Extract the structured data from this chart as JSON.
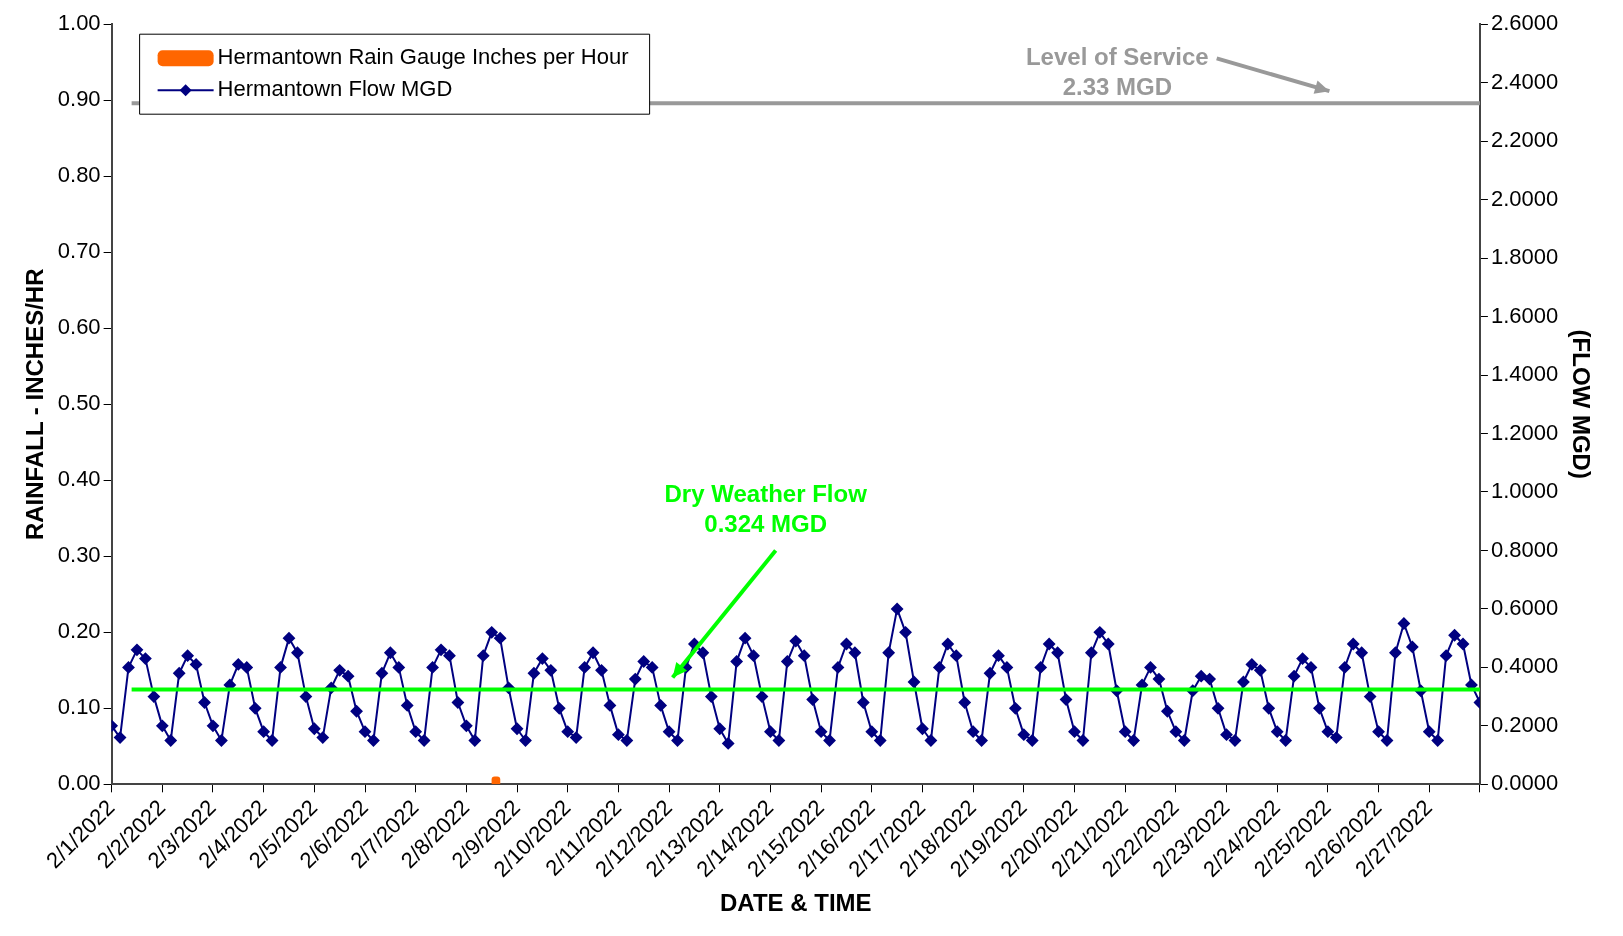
{
  "chart_data": {
    "type": "line",
    "xlabel": "DATE & TIME",
    "ylabel": "RAINFALL - INCHES/HR",
    "y2label": "(FLOW MGD)",
    "xlim": [
      "2022-02-01",
      "2022-02-28"
    ],
    "xticks": [
      {
        "value": "2022-02-01",
        "label": "2/1/2022"
      },
      {
        "value": "2022-02-02",
        "label": "2/2/2022"
      },
      {
        "value": "2022-02-03",
        "label": "2/3/2022"
      },
      {
        "value": "2022-02-04",
        "label": "2/4/2022"
      },
      {
        "value": "2022-02-05",
        "label": "2/5/2022"
      },
      {
        "value": "2022-02-06",
        "label": "2/6/2022"
      },
      {
        "value": "2022-02-07",
        "label": "2/7/2022"
      },
      {
        "value": "2022-02-08",
        "label": "2/8/2022"
      },
      {
        "value": "2022-02-09",
        "label": "2/9/2022"
      },
      {
        "value": "2022-02-10",
        "label": "2/10/2022"
      },
      {
        "value": "2022-02-11",
        "label": "2/11/2022"
      },
      {
        "value": "2022-02-12",
        "label": "2/12/2022"
      },
      {
        "value": "2022-02-13",
        "label": "2/13/2022"
      },
      {
        "value": "2022-02-14",
        "label": "2/14/2022"
      },
      {
        "value": "2022-02-15",
        "label": "2/15/2022"
      },
      {
        "value": "2022-02-16",
        "label": "2/16/2022"
      },
      {
        "value": "2022-02-17",
        "label": "2/17/2022"
      },
      {
        "value": "2022-02-18",
        "label": "2/18/2022"
      },
      {
        "value": "2022-02-19",
        "label": "2/19/2022"
      },
      {
        "value": "2022-02-20",
        "label": "2/20/2022"
      },
      {
        "value": "2022-02-21",
        "label": "2/21/2022"
      },
      {
        "value": "2022-02-22",
        "label": "2/22/2022"
      },
      {
        "value": "2022-02-23",
        "label": "2/23/2022"
      },
      {
        "value": "2022-02-24",
        "label": "2/24/2022"
      },
      {
        "value": "2022-02-25",
        "label": "2/25/2022"
      },
      {
        "value": "2022-02-26",
        "label": "2/26/2022"
      },
      {
        "value": "2022-02-27",
        "label": "2/27/2022"
      },
      {
        "value": "2022-02-28",
        "label": null
      }
    ],
    "ylim": [
      0,
      1
    ],
    "yticks": [
      {
        "value": 0,
        "label": "0.00"
      },
      {
        "value": 0.1,
        "label": "0.10"
      },
      {
        "value": 0.2,
        "label": "0.20"
      },
      {
        "value": 0.3,
        "label": "0.30"
      },
      {
        "value": 0.4,
        "label": "0.40"
      },
      {
        "value": 0.5,
        "label": "0.50"
      },
      {
        "value": 0.6,
        "label": "0.60"
      },
      {
        "value": 0.7,
        "label": "0.70"
      },
      {
        "value": 0.8,
        "label": "0.80"
      },
      {
        "value": 0.9,
        "label": "0.90"
      },
      {
        "value": 1,
        "label": "1.00"
      }
    ],
    "y2lim": [
      0,
      2.6
    ],
    "y2ticks": [
      {
        "value": 0,
        "label": "0.0000"
      },
      {
        "value": 0.2,
        "label": "0.2000"
      },
      {
        "value": 0.4,
        "label": "0.4000"
      },
      {
        "value": 0.6,
        "label": "0.6000"
      },
      {
        "value": 0.8,
        "label": "0.8000"
      },
      {
        "value": 1,
        "label": "1.0000"
      },
      {
        "value": 1.2,
        "label": "1.2000"
      },
      {
        "value": 1.4,
        "label": "1.4000"
      },
      {
        "value": 1.6,
        "label": "1.6000"
      },
      {
        "value": 1.8,
        "label": "1.8000"
      },
      {
        "value": 2,
        "label": "2.0000"
      },
      {
        "value": 2.2,
        "label": "2.2000"
      },
      {
        "value": 2.4,
        "label": "2.4000"
      },
      {
        "value": 2.6,
        "label": "2.6000"
      }
    ],
    "legend": "top left",
    "marker": "diamond",
    "line_style": "solid",
    "ref_lines": [
      {
        "axis": "y2",
        "value": 2.33,
        "label": "Level of Service\n2.33 MGD",
        "color": "#999999"
      },
      {
        "axis": "y2",
        "value": 0.324,
        "label": "Dry Weather Flow\n0.324 MGD",
        "color": "#00ff00"
      }
    ],
    "series": [
      {
        "name": "Hermantown Rain Gauge Inches per Hour",
        "type": "bar",
        "color": "#ff6600",
        "x": [
          "2022-02-08T14:00"
        ],
        "values": [
          0.01
        ]
      },
      {
        "name": "Hermantown Flow MGD",
        "axis": "y2",
        "color": "#000080",
        "x": [
          "2022-02-01T00:00",
          "2022-02-01T04:00",
          "2022-02-01T08:00",
          "2022-02-01T12:00",
          "2022-02-01T16:00",
          "2022-02-01T20:00",
          "2022-02-02T00:00",
          "2022-02-02T04:00",
          "2022-02-02T08:00",
          "2022-02-02T12:00",
          "2022-02-02T16:00",
          "2022-02-02T20:00",
          "2022-02-03T00:00",
          "2022-02-03T04:00",
          "2022-02-03T08:00",
          "2022-02-03T12:00",
          "2022-02-03T16:00",
          "2022-02-03T20:00",
          "2022-02-04T00:00",
          "2022-02-04T04:00",
          "2022-02-04T08:00",
          "2022-02-04T12:00",
          "2022-02-04T16:00",
          "2022-02-04T20:00",
          "2022-02-05T00:00",
          "2022-02-05T04:00",
          "2022-02-05T08:00",
          "2022-02-05T12:00",
          "2022-02-05T16:00",
          "2022-02-05T20:00",
          "2022-02-06T00:00",
          "2022-02-06T04:00",
          "2022-02-06T08:00",
          "2022-02-06T12:00",
          "2022-02-06T16:00",
          "2022-02-06T20:00",
          "2022-02-07T00:00",
          "2022-02-07T04:00",
          "2022-02-07T08:00",
          "2022-02-07T12:00",
          "2022-02-07T16:00",
          "2022-02-07T20:00",
          "2022-02-08T00:00",
          "2022-02-08T04:00",
          "2022-02-08T08:00",
          "2022-02-08T12:00",
          "2022-02-08T16:00",
          "2022-02-08T20:00",
          "2022-02-09T00:00",
          "2022-02-09T04:00",
          "2022-02-09T08:00",
          "2022-02-09T12:00",
          "2022-02-09T16:00",
          "2022-02-09T20:00",
          "2022-02-10T00:00",
          "2022-02-10T04:00",
          "2022-02-10T08:00",
          "2022-02-10T12:00",
          "2022-02-10T16:00",
          "2022-02-10T20:00",
          "2022-02-11T00:00",
          "2022-02-11T04:00",
          "2022-02-11T08:00",
          "2022-02-11T12:00",
          "2022-02-11T16:00",
          "2022-02-11T20:00",
          "2022-02-12T00:00",
          "2022-02-12T04:00",
          "2022-02-12T08:00",
          "2022-02-12T12:00",
          "2022-02-12T16:00",
          "2022-02-12T20:00",
          "2022-02-13T00:00",
          "2022-02-13T04:00",
          "2022-02-13T08:00",
          "2022-02-13T12:00",
          "2022-02-13T16:00",
          "2022-02-13T20:00",
          "2022-02-14T00:00",
          "2022-02-14T04:00",
          "2022-02-14T08:00",
          "2022-02-14T12:00",
          "2022-02-14T16:00",
          "2022-02-14T20:00",
          "2022-02-15T00:00",
          "2022-02-15T04:00",
          "2022-02-15T08:00",
          "2022-02-15T12:00",
          "2022-02-15T16:00",
          "2022-02-15T20:00",
          "2022-02-16T00:00",
          "2022-02-16T04:00",
          "2022-02-16T08:00",
          "2022-02-16T12:00",
          "2022-02-16T16:00",
          "2022-02-16T20:00",
          "2022-02-17T00:00",
          "2022-02-17T04:00",
          "2022-02-17T08:00",
          "2022-02-17T12:00",
          "2022-02-17T16:00",
          "2022-02-17T20:00",
          "2022-02-18T00:00",
          "2022-02-18T04:00",
          "2022-02-18T08:00",
          "2022-02-18T12:00",
          "2022-02-18T16:00",
          "2022-02-18T20:00",
          "2022-02-19T00:00",
          "2022-02-19T04:00",
          "2022-02-19T08:00",
          "2022-02-19T12:00",
          "2022-02-19T16:00",
          "2022-02-19T20:00",
          "2022-02-20T00:00",
          "2022-02-20T04:00",
          "2022-02-20T08:00",
          "2022-02-20T12:00",
          "2022-02-20T16:00",
          "2022-02-20T20:00",
          "2022-02-21T00:00",
          "2022-02-21T04:00",
          "2022-02-21T08:00",
          "2022-02-21T12:00",
          "2022-02-21T16:00",
          "2022-02-21T20:00",
          "2022-02-22T00:00",
          "2022-02-22T04:00",
          "2022-02-22T08:00",
          "2022-02-22T12:00",
          "2022-02-22T16:00",
          "2022-02-22T20:00",
          "2022-02-23T00:00",
          "2022-02-23T04:00",
          "2022-02-23T08:00",
          "2022-02-23T12:00",
          "2022-02-23T16:00",
          "2022-02-23T20:00",
          "2022-02-24T00:00",
          "2022-02-24T04:00",
          "2022-02-24T08:00",
          "2022-02-24T12:00",
          "2022-02-24T16:00",
          "2022-02-24T20:00",
          "2022-02-25T00:00",
          "2022-02-25T04:00",
          "2022-02-25T08:00",
          "2022-02-25T12:00",
          "2022-02-25T16:00",
          "2022-02-25T20:00",
          "2022-02-26T00:00",
          "2022-02-26T04:00",
          "2022-02-26T08:00",
          "2022-02-26T12:00",
          "2022-02-26T16:00",
          "2022-02-26T20:00",
          "2022-02-27T00:00",
          "2022-02-27T04:00",
          "2022-02-27T08:00",
          "2022-02-27T12:00",
          "2022-02-27T16:00",
          "2022-02-27T20:00",
          "2022-02-28T00:00"
        ],
        "values": [
          0.2,
          0.16,
          0.4,
          0.46,
          0.43,
          0.3,
          0.2,
          0.15,
          0.38,
          0.44,
          0.41,
          0.28,
          0.2,
          0.15,
          0.34,
          0.41,
          0.4,
          0.26,
          0.18,
          0.15,
          0.4,
          0.5,
          0.45,
          0.3,
          0.19,
          0.16,
          0.33,
          0.39,
          0.37,
          0.25,
          0.18,
          0.15,
          0.38,
          0.45,
          0.4,
          0.27,
          0.18,
          0.15,
          0.4,
          0.46,
          0.44,
          0.28,
          0.2,
          0.15,
          0.44,
          0.52,
          0.5,
          0.33,
          0.19,
          0.15,
          0.38,
          0.43,
          0.39,
          0.26,
          0.18,
          0.16,
          0.4,
          0.45,
          0.39,
          0.27,
          0.17,
          0.15,
          0.36,
          0.42,
          0.4,
          0.27,
          0.18,
          0.15,
          0.4,
          0.48,
          0.45,
          0.3,
          0.19,
          0.14,
          0.42,
          0.5,
          0.44,
          0.3,
          0.18,
          0.15,
          0.42,
          0.49,
          0.44,
          0.29,
          0.18,
          0.15,
          0.4,
          0.48,
          0.45,
          0.28,
          0.18,
          0.15,
          0.45,
          0.6,
          0.52,
          0.35,
          0.19,
          0.15,
          0.4,
          0.48,
          0.44,
          0.28,
          0.18,
          0.15,
          0.38,
          0.44,
          0.4,
          0.26,
          0.17,
          0.15,
          0.4,
          0.48,
          0.45,
          0.29,
          0.18,
          0.15,
          0.45,
          0.52,
          0.48,
          0.32,
          0.18,
          0.15,
          0.34,
          0.4,
          0.36,
          0.25,
          0.18,
          0.15,
          0.32,
          0.37,
          0.36,
          0.26,
          0.17,
          0.15,
          0.35,
          0.41,
          0.39,
          0.26,
          0.18,
          0.15,
          0.37,
          0.43,
          0.4,
          0.26,
          0.18,
          0.16,
          0.4,
          0.48,
          0.45,
          0.3,
          0.18,
          0.15,
          0.45,
          0.55,
          0.47,
          0.32,
          0.18,
          0.15,
          0.44,
          0.51,
          0.48,
          0.34,
          0.28
        ]
      }
    ]
  }
}
